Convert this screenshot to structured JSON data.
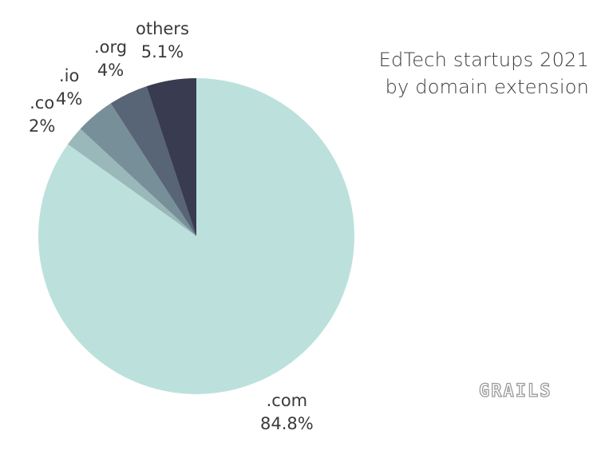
{
  "chart_data": {
    "type": "pie",
    "title": "EdTech startups 2021",
    "subtitle": "by domain extension",
    "start_angle_deg": 0,
    "direction": "clockwise",
    "slices": [
      {
        "label": ".com",
        "value": 84.8,
        "value_text": "84.8%",
        "color": "#bce1dd"
      },
      {
        "label": ".co",
        "value": 2.0,
        "value_text": "2%",
        "color": "#9ab8b9"
      },
      {
        "label": ".io",
        "value": 4.0,
        "value_text": "4%",
        "color": "#778f99"
      },
      {
        "label": ".org",
        "value": 4.0,
        "value_text": "4%",
        "color": "#576576"
      },
      {
        "label": "others",
        "value": 5.1,
        "value_text": "5.1%",
        "color": "#393c50"
      }
    ]
  },
  "watermark": "GRAILS"
}
